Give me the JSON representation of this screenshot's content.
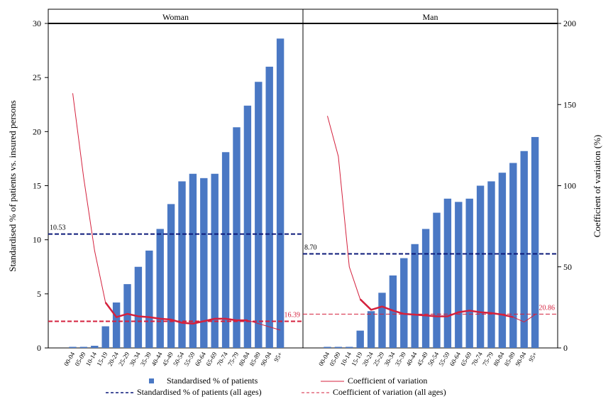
{
  "chart_data": {
    "type": "bar",
    "categories": [
      "00-04",
      "05-09",
      "10-14",
      "15-19",
      "20-24",
      "25-29",
      "30-34",
      "35-39",
      "40-44",
      "45-49",
      "50-54",
      "55-59",
      "60-64",
      "65-69",
      "70-74",
      "75-79",
      "80-84",
      "85-89",
      "90-94",
      "95+"
    ],
    "panels": [
      {
        "name": "Woman",
        "values": [
          0.1,
          0.1,
          0.2,
          2.0,
          4.2,
          5.9,
          7.5,
          9.0,
          11.0,
          13.3,
          15.4,
          16.1,
          15.7,
          16.1,
          18.1,
          20.4,
          22.4,
          24.6,
          26.0,
          28.6
        ],
        "cv": [
          157,
          105,
          60,
          28,
          19,
          21,
          19.5,
          19,
          18,
          17.5,
          15.5,
          15,
          16.5,
          18,
          18,
          17,
          17,
          null,
          null,
          11
        ],
        "all_ages_pct": 10.53,
        "all_ages_pct_label": "10.53",
        "all_ages_cv": 16.39,
        "all_ages_cv_label": "16.39"
      },
      {
        "name": "Man",
        "values": [
          0.1,
          0.1,
          0.1,
          1.6,
          3.4,
          5.1,
          6.7,
          8.3,
          9.6,
          11.0,
          12.5,
          13.8,
          13.5,
          13.8,
          15.0,
          15.4,
          16.2,
          17.1,
          18.2,
          19.5
        ],
        "cv": [
          143,
          118,
          50,
          30,
          23.5,
          25.5,
          23,
          21,
          20.5,
          20,
          19.5,
          19.5,
          22,
          23,
          22,
          21.5,
          20.5,
          19,
          16,
          20.5
        ],
        "all_ages_pct": 8.7,
        "all_ages_pct_label": "8.70",
        "all_ages_cv": 20.86,
        "all_ages_cv_label": "20.86"
      }
    ],
    "ylabel": "Standardised % of patients vs. insured persons",
    "y2label": "Coefficient of variation (%)",
    "ylim": [
      0,
      30
    ],
    "y2lim": [
      0,
      200
    ],
    "yticks": [
      0,
      5,
      10,
      15,
      20,
      25,
      30
    ],
    "y2ticks": [
      0,
      50,
      100,
      150,
      200
    ],
    "legend": {
      "position": "bottom",
      "items": [
        {
          "key": "bar",
          "label": "Standardised % of patients"
        },
        {
          "key": "cv",
          "label": "Coefficient of variation"
        },
        {
          "key": "pct_all",
          "label": "Standardised % of patients (all ages)"
        },
        {
          "key": "cv_all",
          "label": "Coefficient of variation (all ages)"
        }
      ]
    },
    "colors": {
      "bar": "#4a78c4",
      "cv": "#d4213d",
      "pct_all": "#0c1a7a",
      "cv_all": "#d4213d"
    }
  }
}
